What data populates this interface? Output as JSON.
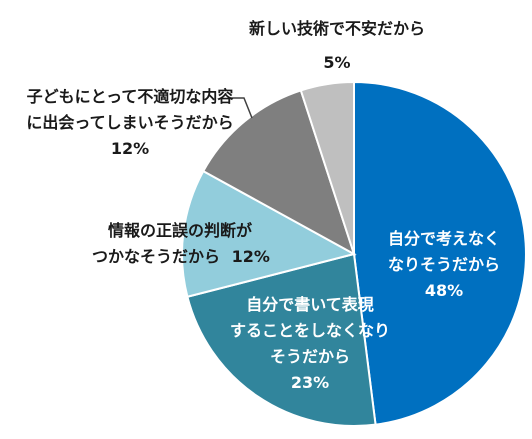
{
  "chart_data": {
    "type": "pie",
    "title": "",
    "start": "12 o'clock, clockwise",
    "slices": [
      {
        "label_lines": [
          "自分で考えなく",
          "なりそうだから"
        ],
        "value": 48,
        "value_text": "48%",
        "color": "#0070c0"
      },
      {
        "label_lines": [
          "自分で書いて表現",
          "することをしなくなり",
          "そうだから"
        ],
        "value": 23,
        "value_text": "23%",
        "color": "#31859c"
      },
      {
        "label_lines": [
          "情報の正誤の判断が",
          "つかなそうだから"
        ],
        "value": 12,
        "value_text": "12%",
        "color": "#92cddc"
      },
      {
        "label_lines": [
          "子どもにとって不適切な内容",
          "に出会ってしまいそうだから"
        ],
        "value": 12,
        "value_text": "12%",
        "color": "#7f7f7f"
      },
      {
        "label_lines": [
          "新しい技術で不安だから"
        ],
        "value": 5,
        "value_text": "5%",
        "color": "#bfbfbf"
      }
    ]
  }
}
